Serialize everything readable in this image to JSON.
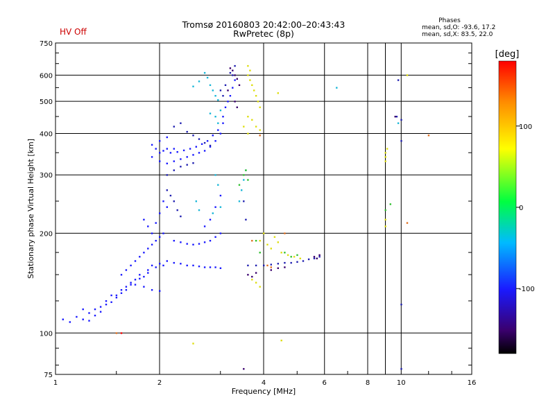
{
  "status_label": "HV Off",
  "title_line1": "Tromsø 20160803 20:42:00–20:43:43",
  "title_line2": "RwPretec (8p)",
  "phases": {
    "heading": "Phases",
    "line_o": "mean, sd,O: -93.6, 17.2",
    "line_x": "mean, sd,X: 83.5, 22.0"
  },
  "colors": {
    "status": "#cc0000",
    "blue": "#1a1aff",
    "navy": "#2020b0",
    "cyan": "#19b7d8",
    "purple": "#3a006e",
    "yellow": "#dede10",
    "green": "#30c030",
    "orange": "#e07020",
    "red": "#ff0000"
  },
  "chart_data": {
    "type": "scatter",
    "xlabel": "Frequency [MHz]",
    "ylabel": "Stationary phase Virtual Height [km]",
    "x_scale": "log",
    "y_scale": "log",
    "xlim": [
      1,
      16
    ],
    "ylim": [
      75,
      750
    ],
    "x_ticks": [
      1,
      2,
      4,
      6,
      8,
      10,
      16
    ],
    "x_tick_labels": [
      "1",
      "2",
      "4",
      "6",
      "8",
      "10",
      "16"
    ],
    "y_ticks": [
      75,
      100,
      200,
      300,
      400,
      500,
      600,
      750
    ],
    "y_tick_labels": [
      "75",
      "100",
      "200",
      "300",
      "400",
      "500",
      "600",
      "750"
    ],
    "grid": true,
    "colorbar": {
      "label": "[deg]",
      "range": [
        -180,
        180
      ],
      "ticks": [
        100,
        0,
        -100
      ],
      "tick_labels": [
        "100",
        "0",
        "-100"
      ]
    },
    "series": [
      {
        "color": "blue",
        "points": [
          [
            1.05,
            110
          ],
          [
            1.1,
            108
          ],
          [
            1.15,
            112
          ],
          [
            1.2,
            118
          ],
          [
            1.25,
            115
          ],
          [
            1.3,
            113
          ],
          [
            1.35,
            120
          ],
          [
            1.4,
            125
          ],
          [
            1.45,
            130
          ],
          [
            1.5,
            128
          ],
          [
            1.55,
            135
          ],
          [
            1.6,
            138
          ],
          [
            1.65,
            142
          ],
          [
            1.7,
            145
          ],
          [
            1.75,
            150
          ],
          [
            1.8,
            148
          ],
          [
            1.85,
            155
          ],
          [
            1.9,
            160
          ],
          [
            1.95,
            158
          ],
          [
            2.0,
            162
          ],
          [
            2.05,
            160
          ],
          [
            2.1,
            165
          ],
          [
            2.2,
            163
          ],
          [
            2.3,
            162
          ],
          [
            2.4,
            160
          ],
          [
            2.5,
            160
          ],
          [
            2.6,
            159
          ],
          [
            2.7,
            158
          ],
          [
            2.8,
            158
          ],
          [
            2.9,
            158
          ],
          [
            3.0,
            157
          ],
          [
            1.55,
            150
          ],
          [
            1.6,
            155
          ],
          [
            1.65,
            160
          ],
          [
            1.7,
            165
          ],
          [
            1.75,
            170
          ],
          [
            1.8,
            175
          ],
          [
            1.85,
            180
          ],
          [
            1.9,
            185
          ],
          [
            1.95,
            190
          ],
          [
            2.0,
            195
          ],
          [
            2.05,
            200
          ],
          [
            1.8,
            220
          ],
          [
            1.85,
            210
          ],
          [
            1.9,
            200
          ],
          [
            1.95,
            215
          ],
          [
            2.0,
            230
          ],
          [
            2.05,
            250
          ],
          [
            2.1,
            240
          ],
          [
            2.2,
            190
          ],
          [
            2.3,
            188
          ],
          [
            2.4,
            186
          ],
          [
            2.5,
            185
          ],
          [
            2.6,
            186
          ],
          [
            2.7,
            188
          ],
          [
            2.8,
            190
          ],
          [
            2.9,
            195
          ],
          [
            3.0,
            200
          ],
          [
            2.7,
            210
          ],
          [
            2.8,
            220
          ],
          [
            2.9,
            240
          ],
          [
            3.0,
            260
          ],
          [
            1.9,
            340
          ],
          [
            2.0,
            330
          ],
          [
            2.1,
            325
          ],
          [
            2.2,
            330
          ],
          [
            2.3,
            335
          ],
          [
            2.4,
            340
          ],
          [
            2.5,
            345
          ],
          [
            2.6,
            350
          ],
          [
            2.7,
            355
          ],
          [
            2.8,
            365
          ],
          [
            2.9,
            380
          ],
          [
            3.0,
            400
          ],
          [
            1.95,
            360
          ],
          [
            2.05,
            355
          ],
          [
            2.15,
            350
          ],
          [
            2.25,
            352
          ],
          [
            2.35,
            356
          ],
          [
            2.45,
            360
          ],
          [
            2.55,
            365
          ],
          [
            2.65,
            372
          ],
          [
            2.75,
            380
          ],
          [
            2.85,
            395
          ],
          [
            2.95,
            410
          ],
          [
            3.05,
            430
          ],
          [
            1.9,
            370
          ],
          [
            2.0,
            380
          ],
          [
            2.1,
            390
          ],
          [
            2.0,
            350
          ],
          [
            2.1,
            360
          ],
          [
            2.2,
            360
          ],
          [
            3.2,
            520
          ],
          [
            3.25,
            550
          ],
          [
            3.3,
            580
          ],
          [
            3.15,
            500
          ],
          [
            3.1,
            480
          ],
          [
            3.05,
            450
          ],
          [
            1.3,
            118
          ],
          [
            1.4,
            122
          ],
          [
            1.5,
            130
          ],
          [
            1.6,
            135
          ],
          [
            1.7,
            140
          ],
          [
            1.8,
            138
          ],
          [
            1.9,
            135
          ],
          [
            2.0,
            134
          ],
          [
            1.2,
            110
          ],
          [
            1.25,
            109
          ],
          [
            1.35,
            116
          ],
          [
            1.45,
            124
          ],
          [
            1.55,
            132
          ],
          [
            1.65,
            140
          ],
          [
            1.75,
            146
          ],
          [
            1.85,
            152
          ]
        ]
      },
      {
        "color": "navy",
        "points": [
          [
            2.2,
            420
          ],
          [
            2.3,
            430
          ],
          [
            2.4,
            405
          ],
          [
            2.5,
            395
          ],
          [
            2.6,
            385
          ],
          [
            2.7,
            375
          ],
          [
            2.8,
            368
          ],
          [
            2.2,
            310
          ],
          [
            2.3,
            318
          ],
          [
            2.4,
            322
          ],
          [
            2.5,
            326
          ],
          [
            2.1,
            300
          ],
          [
            3.0,
            540
          ],
          [
            3.1,
            560
          ],
          [
            3.2,
            610
          ],
          [
            3.3,
            640
          ],
          [
            3.25,
            600
          ],
          [
            3.05,
            520
          ],
          [
            3.6,
            160
          ],
          [
            3.8,
            160
          ],
          [
            4.0,
            160
          ],
          [
            4.2,
            161
          ],
          [
            4.4,
            162
          ],
          [
            4.6,
            163
          ],
          [
            4.8,
            163
          ],
          [
            5.0,
            164
          ],
          [
            5.2,
            165
          ],
          [
            5.4,
            167
          ],
          [
            5.6,
            168
          ],
          [
            5.8,
            170
          ],
          [
            10.0,
            380
          ],
          [
            10.0,
            440
          ],
          [
            9.8,
            580
          ],
          [
            10.0,
            78
          ],
          [
            10.0,
            122
          ],
          [
            9.7,
            450
          ],
          [
            2.1,
            270
          ],
          [
            2.15,
            260
          ],
          [
            2.2,
            250
          ],
          [
            2.25,
            235
          ],
          [
            2.3,
            225
          ],
          [
            3.5,
            250
          ],
          [
            3.55,
            220
          ]
        ]
      },
      {
        "color": "cyan",
        "points": [
          [
            2.75,
            590
          ],
          [
            2.8,
            560
          ],
          [
            2.85,
            540
          ],
          [
            2.9,
            520
          ],
          [
            2.95,
            505
          ],
          [
            2.7,
            610
          ],
          [
            2.6,
            575
          ],
          [
            2.5,
            555
          ],
          [
            2.9,
            450
          ],
          [
            2.95,
            430
          ],
          [
            3.0,
            470
          ],
          [
            2.8,
            460
          ],
          [
            3.4,
            250
          ],
          [
            3.45,
            270
          ],
          [
            3.5,
            290
          ],
          [
            3.55,
            310
          ],
          [
            2.9,
            300
          ],
          [
            2.95,
            280
          ],
          [
            3.0,
            240
          ],
          [
            2.85,
            230
          ],
          [
            6.5,
            550
          ],
          [
            9.8,
            430
          ],
          [
            2.55,
            250
          ],
          [
            2.6,
            235
          ]
        ]
      },
      {
        "color": "purple",
        "points": [
          [
            3.2,
            630
          ],
          [
            3.25,
            620
          ],
          [
            3.3,
            600
          ],
          [
            3.35,
            585
          ],
          [
            3.4,
            560
          ],
          [
            3.15,
            540
          ],
          [
            3.6,
            150
          ],
          [
            3.7,
            148
          ],
          [
            3.8,
            152
          ],
          [
            4.2,
            155
          ],
          [
            4.4,
            157
          ],
          [
            4.6,
            158
          ],
          [
            5.6,
            170
          ],
          [
            5.7,
            168
          ],
          [
            5.8,
            172
          ],
          [
            3.5,
            78
          ],
          [
            9.6,
            450
          ],
          [
            3.3,
            500
          ],
          [
            3.35,
            480
          ]
        ]
      },
      {
        "color": "yellow",
        "points": [
          [
            3.6,
            600
          ],
          [
            3.65,
            580
          ],
          [
            3.7,
            560
          ],
          [
            3.75,
            540
          ],
          [
            3.8,
            520
          ],
          [
            3.85,
            500
          ],
          [
            3.9,
            480
          ],
          [
            3.6,
            450
          ],
          [
            3.7,
            440
          ],
          [
            3.8,
            420
          ],
          [
            3.9,
            410
          ],
          [
            3.5,
            420
          ],
          [
            3.6,
            400
          ],
          [
            4.0,
            200
          ],
          [
            3.9,
            190
          ],
          [
            4.1,
            185
          ],
          [
            4.2,
            180
          ],
          [
            4.5,
            175
          ],
          [
            4.7,
            172
          ],
          [
            4.9,
            170
          ],
          [
            5.1,
            168
          ],
          [
            3.7,
            145
          ],
          [
            3.8,
            142
          ],
          [
            3.9,
            138
          ],
          [
            4.3,
            195
          ],
          [
            4.4,
            188
          ],
          [
            9.0,
            330
          ],
          [
            9.0,
            340
          ],
          [
            9.0,
            350
          ],
          [
            9.1,
            360
          ],
          [
            9.0,
            220
          ],
          [
            9.0,
            210
          ],
          [
            4.5,
            95
          ],
          [
            2.5,
            93
          ],
          [
            4.4,
            530
          ],
          [
            10.4,
            600
          ],
          [
            3.6,
            640
          ],
          [
            3.65,
            620
          ]
        ]
      },
      {
        "color": "green",
        "points": [
          [
            3.5,
            300
          ],
          [
            3.55,
            310
          ],
          [
            3.6,
            290
          ],
          [
            3.4,
            280
          ],
          [
            4.6,
            175
          ],
          [
            4.8,
            170
          ],
          [
            5.0,
            172
          ],
          [
            9.3,
            245
          ],
          [
            9.0,
            235
          ],
          [
            3.8,
            190
          ],
          [
            3.9,
            175
          ]
        ]
      },
      {
        "color": "orange",
        "points": [
          [
            12.0,
            395
          ],
          [
            4.1,
            160
          ],
          [
            4.2,
            158
          ],
          [
            1.5,
            100
          ],
          [
            3.9,
            395
          ],
          [
            10.4,
            215
          ],
          [
            4.6,
            200
          ],
          [
            3.7,
            190
          ]
        ]
      },
      {
        "color": "red",
        "points": [
          [
            1.55,
            100
          ]
        ]
      }
    ]
  }
}
